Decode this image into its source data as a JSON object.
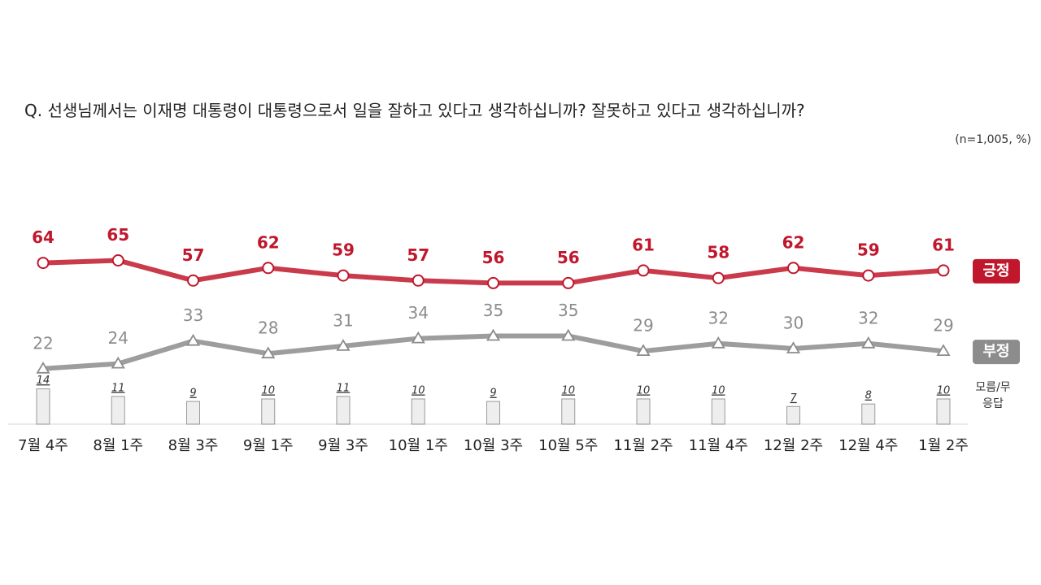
{
  "chart_data": {
    "type": "line",
    "title": "Q. 선생님께서는 이재명 대통령이 대통령으로서 일을 잘하고 있다고 생각하십니까? 잘못하고 있다고 생각하십니까?",
    "note": "(n=1,005,  %)",
    "categories": [
      "7월 4주",
      "8월 1주",
      "8월 3주",
      "9월 1주",
      "9월 3주",
      "10월 1주",
      "10월 3주",
      "10월 5주",
      "11월 2주",
      "11월 4주",
      "12월 2주",
      "12월 4주",
      "1월 2주"
    ],
    "series": [
      {
        "name": "긍정",
        "color": "#c0172c",
        "marker": "circle",
        "values": [
          64,
          65,
          57,
          62,
          59,
          57,
          56,
          56,
          61,
          58,
          62,
          59,
          61
        ]
      },
      {
        "name": "부정",
        "color": "#8c8c8c",
        "marker": "triangle",
        "values": [
          22,
          24,
          33,
          28,
          31,
          34,
          35,
          35,
          29,
          32,
          30,
          32,
          29
        ]
      },
      {
        "name": "모름/무응답",
        "color": "#eeeeee",
        "marker": "bar",
        "values": [
          14,
          11,
          9,
          10,
          11,
          10,
          9,
          10,
          10,
          10,
          7,
          8,
          10
        ]
      }
    ]
  }
}
